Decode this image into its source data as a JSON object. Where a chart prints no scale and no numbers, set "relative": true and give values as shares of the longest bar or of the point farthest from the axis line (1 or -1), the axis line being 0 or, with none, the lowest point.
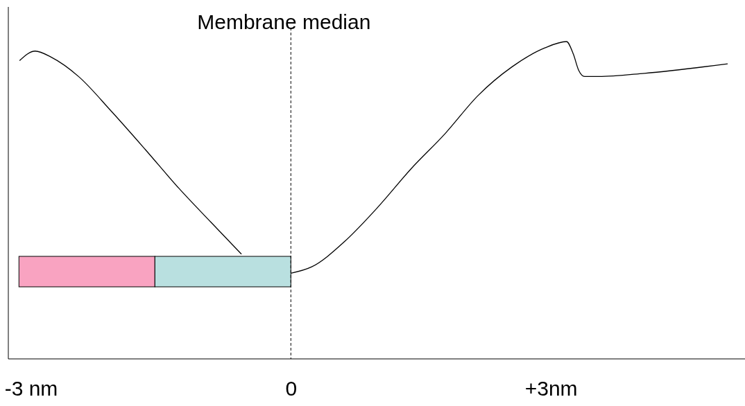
{
  "chart_data": {
    "type": "line",
    "relative": true,
    "x": [
      -3.13,
      -2.95,
      -2.76,
      -2.45,
      -2.07,
      -1.68,
      -1.3,
      -0.92,
      -0.57,
      -0.3,
      0,
      0.24,
      0.62,
      1.01,
      1.39,
      1.78,
      2.16,
      2.55,
      2.93,
      3.18,
      3.26,
      3.32,
      3.39,
      3.55,
      4.08,
      5.04
    ],
    "series": [
      {
        "color": "#000000",
        "values": [
          0.94,
          0.97,
          0.95,
          0.89,
          0.78,
          0.66,
          0.54,
          0.43,
          0.33,
          null,
          0.27,
          0.29,
          0.37,
          0.48,
          0.6,
          0.71,
          0.83,
          0.92,
          0.98,
          1,
          0.96,
          0.91,
          0.89,
          0.89,
          0.9,
          0.93
        ]
      }
    ],
    "xlim": [
      -3.26,
      5.24
    ],
    "xticks": [
      {
        "value": -3,
        "label": "-3 nm"
      },
      0,
      {
        "value": 3,
        "label": "+3nm"
      }
    ],
    "ref_lines": [
      {
        "axis": "x",
        "value": 0,
        "label": "Membrane median",
        "color": "#000000",
        "line_style": "dashed"
      }
    ],
    "grid": false,
    "marker": "none",
    "line_style": "solid"
  }
}
